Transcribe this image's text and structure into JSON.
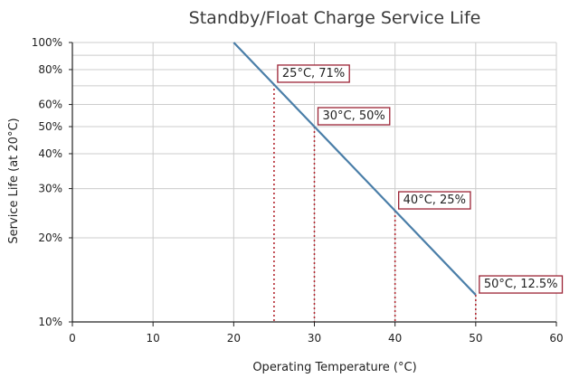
{
  "chart_data": {
    "type": "line",
    "title": "Standby/Float Charge Service Life",
    "xlabel": "Operating Temperature (°C)",
    "ylabel": "Service Life (at 20°C)",
    "xlim": [
      0,
      60
    ],
    "ylim": [
      10,
      100
    ],
    "yscale": "log",
    "x_ticks": [
      0,
      10,
      20,
      30,
      40,
      50,
      60
    ],
    "y_ticks": [
      {
        "value": 10,
        "label": "10%"
      },
      {
        "value": 20,
        "label": "20%"
      },
      {
        "value": 30,
        "label": "30%"
      },
      {
        "value": 40,
        "label": "40%"
      },
      {
        "value": 50,
        "label": "50%"
      },
      {
        "value": 60,
        "label": "60%"
      },
      {
        "value": 80,
        "label": "80%"
      },
      {
        "value": 100,
        "label": "100%"
      }
    ],
    "y_minor_gridlines": [
      70,
      90
    ],
    "grid": true,
    "series": [
      {
        "name": "Service life",
        "color": "#4a7ea8",
        "x": [
          20,
          50
        ],
        "y": [
          100,
          12.5
        ]
      }
    ],
    "annotations": [
      {
        "x": 25,
        "y": 71,
        "label": "25°C, 71%"
      },
      {
        "x": 30,
        "y": 50,
        "label": "30°C, 50%"
      },
      {
        "x": 40,
        "y": 25,
        "label": "40°C, 25%"
      },
      {
        "x": 50,
        "y": 12.5,
        "label": "50°C, 12.5%"
      }
    ],
    "colors": {
      "line": "#4a7ea8",
      "annotation_border": "#9b2335",
      "marker_line": "#b3262f",
      "grid": "#cccccc",
      "axis": "#222222"
    }
  }
}
